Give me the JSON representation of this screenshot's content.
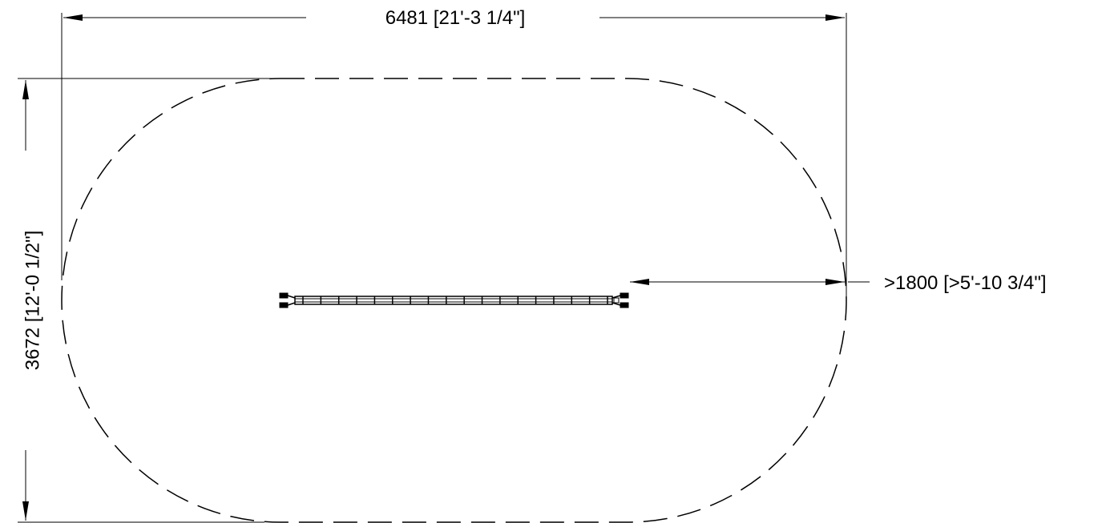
{
  "dimensions": {
    "overall_width": "6481 [21'-3 1/4\"]",
    "overall_height": "3672 [12'-0 1/2\"]",
    "clearance": ">1800 [>5'-10 3/4\"]"
  },
  "style": {
    "line_color": "#000000",
    "background": "#ffffff"
  }
}
